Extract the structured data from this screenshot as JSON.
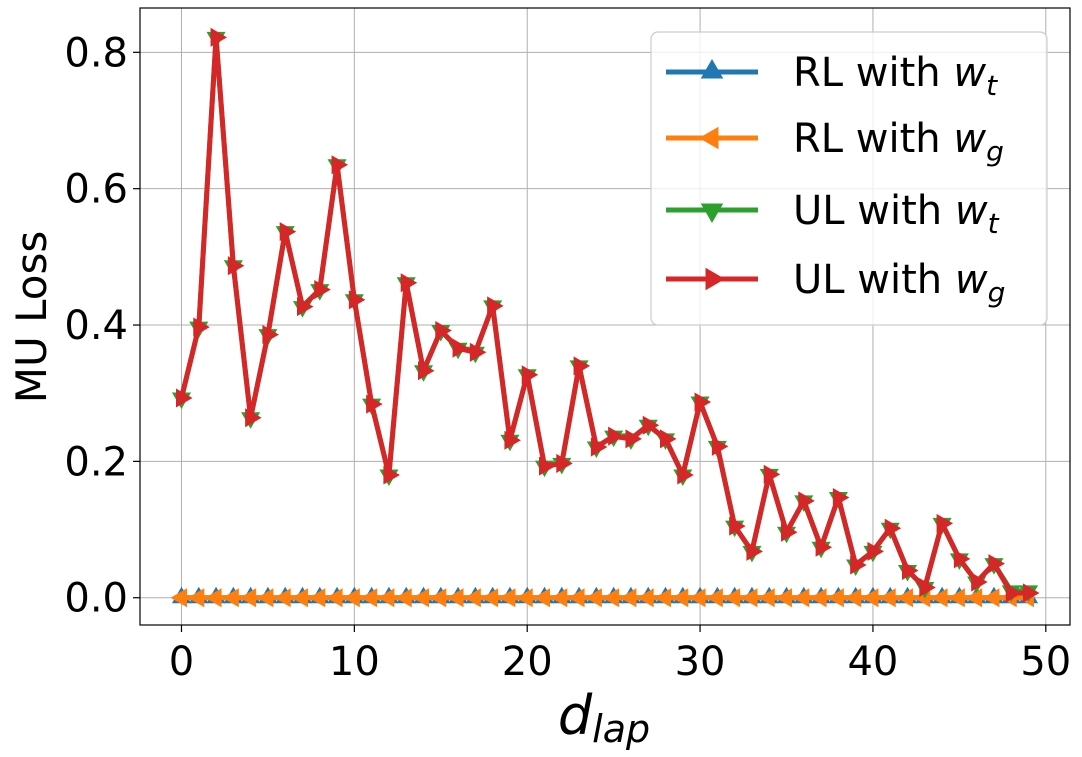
{
  "chart_data": {
    "type": "line",
    "title": "",
    "xlabel_main": "d",
    "xlabel_sub": "lap",
    "ylabel": "MU Loss",
    "xlim": [
      -2.4,
      51.4
    ],
    "ylim": [
      -0.04,
      0.865
    ],
    "xticks": [
      0,
      10,
      20,
      30,
      40,
      50
    ],
    "xtick_labels": [
      "0",
      "10",
      "20",
      "30",
      "40",
      "50"
    ],
    "yticks": [
      0.0,
      0.2,
      0.4,
      0.6,
      0.8
    ],
    "ytick_labels": [
      "0.0",
      "0.2",
      "0.4",
      "0.6",
      "0.8"
    ],
    "grid": true,
    "legend_position": "top-right",
    "x": [
      0,
      1,
      2,
      3,
      4,
      5,
      6,
      7,
      8,
      9,
      10,
      11,
      12,
      13,
      14,
      15,
      16,
      17,
      18,
      19,
      20,
      21,
      22,
      23,
      24,
      25,
      26,
      27,
      28,
      29,
      30,
      31,
      32,
      33,
      34,
      35,
      36,
      37,
      38,
      39,
      40,
      41,
      42,
      43,
      44,
      45,
      46,
      47,
      48,
      49
    ],
    "series": [
      {
        "name": "RL with ",
        "name_math": "w",
        "name_sub": "t",
        "color": "#1f77b4",
        "marker": "triangle-up",
        "values": [
          0,
          0,
          0,
          0,
          0,
          0,
          0,
          0,
          0,
          0,
          0,
          0,
          0,
          0,
          0,
          0,
          0,
          0,
          0,
          0,
          0,
          0,
          0,
          0,
          0,
          0,
          0,
          0,
          0,
          0,
          0,
          0,
          0,
          0,
          0,
          0,
          0,
          0,
          0,
          0,
          0,
          0,
          0,
          0,
          0,
          0,
          0,
          0,
          0,
          0
        ]
      },
      {
        "name": "RL with ",
        "name_math": "w",
        "name_sub": "g",
        "color": "#ff7f0e",
        "marker": "triangle-left",
        "values": [
          0,
          0,
          0,
          0,
          0,
          0,
          0,
          0,
          0,
          0,
          0,
          0,
          0,
          0,
          0,
          0,
          0,
          0,
          0,
          0,
          0,
          0,
          0,
          0,
          0,
          0,
          0,
          0,
          0,
          0,
          0,
          0,
          0,
          0,
          0,
          0,
          0,
          0,
          0,
          0,
          0,
          0,
          0,
          0,
          0,
          0,
          0,
          0,
          0,
          0
        ]
      },
      {
        "name": "UL with ",
        "name_math": "w",
        "name_sub": "t",
        "color": "#2ca02c",
        "marker": "triangle-down",
        "values": [
          0.293,
          0.397,
          0.822,
          0.487,
          0.264,
          0.386,
          0.537,
          0.427,
          0.452,
          0.635,
          0.437,
          0.284,
          0.18,
          0.462,
          0.333,
          0.392,
          0.366,
          0.36,
          0.428,
          0.231,
          0.327,
          0.193,
          0.197,
          0.34,
          0.221,
          0.237,
          0.233,
          0.253,
          0.233,
          0.18,
          0.287,
          0.222,
          0.105,
          0.068,
          0.181,
          0.096,
          0.142,
          0.074,
          0.147,
          0.048,
          0.068,
          0.102,
          0.04,
          0.015,
          0.109,
          0.057,
          0.023,
          0.05,
          0.01,
          0.01
        ]
      },
      {
        "name": "UL with ",
        "name_math": "w",
        "name_sub": "g",
        "color": "#d62728",
        "marker": "triangle-right",
        "values": [
          0.293,
          0.397,
          0.822,
          0.487,
          0.264,
          0.386,
          0.537,
          0.427,
          0.452,
          0.635,
          0.437,
          0.284,
          0.18,
          0.462,
          0.333,
          0.392,
          0.366,
          0.36,
          0.428,
          0.231,
          0.327,
          0.193,
          0.197,
          0.34,
          0.221,
          0.237,
          0.233,
          0.253,
          0.233,
          0.18,
          0.287,
          0.222,
          0.105,
          0.068,
          0.181,
          0.096,
          0.142,
          0.074,
          0.147,
          0.048,
          0.068,
          0.102,
          0.04,
          0.015,
          0.109,
          0.057,
          0.023,
          0.05,
          0.007,
          0.007
        ]
      }
    ]
  }
}
